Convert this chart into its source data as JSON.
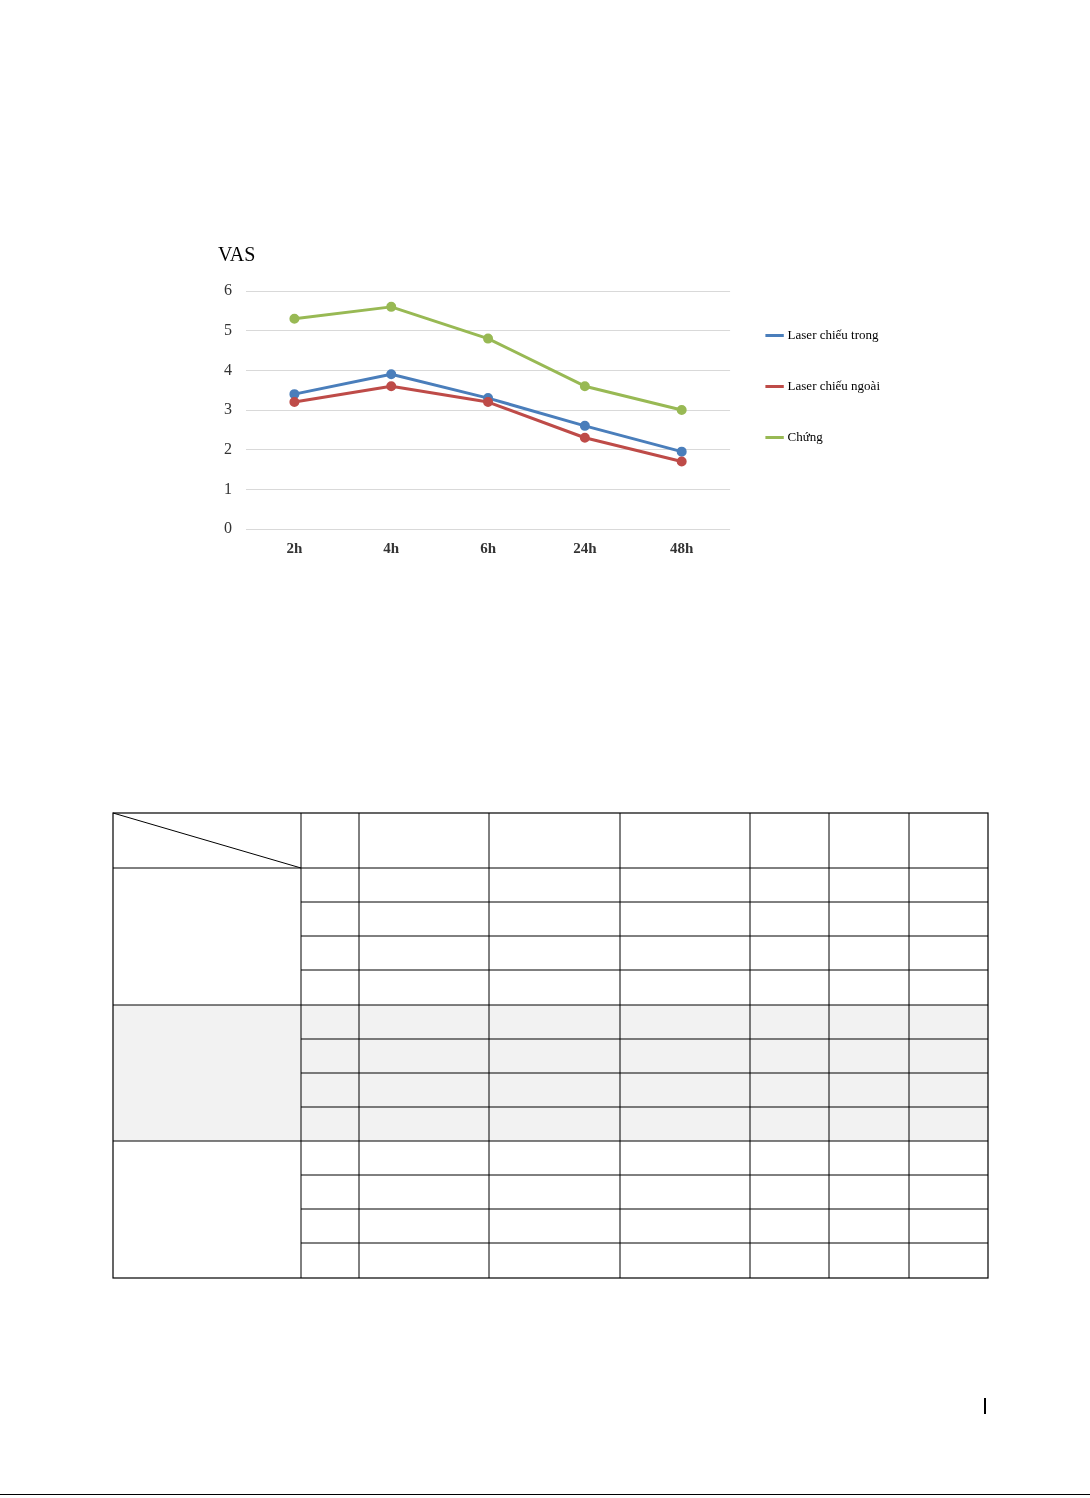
{
  "chart_data": {
    "type": "line",
    "ylabel": "VAS",
    "categories": [
      "2h",
      "4h",
      "6h",
      "24h",
      "48h"
    ],
    "series": [
      {
        "name": "Laser chiếu trong",
        "color": "#4a7ebb",
        "values": [
          3.4,
          3.9,
          3.3,
          2.6,
          1.95
        ]
      },
      {
        "name": "Laser chiếu ngoài",
        "color": "#be4b48",
        "values": [
          3.2,
          3.6,
          3.2,
          2.3,
          1.7
        ]
      },
      {
        "name": "Chứng",
        "color": "#98b954",
        "values": [
          5.3,
          5.6,
          4.8,
          3.6,
          3.0
        ]
      }
    ],
    "ylim": [
      0,
      6
    ],
    "yticks": [
      0,
      1,
      2,
      3,
      4,
      5,
      6
    ],
    "grid": "y",
    "legend": "right",
    "marker": "circle",
    "line_style": "solid"
  }
}
